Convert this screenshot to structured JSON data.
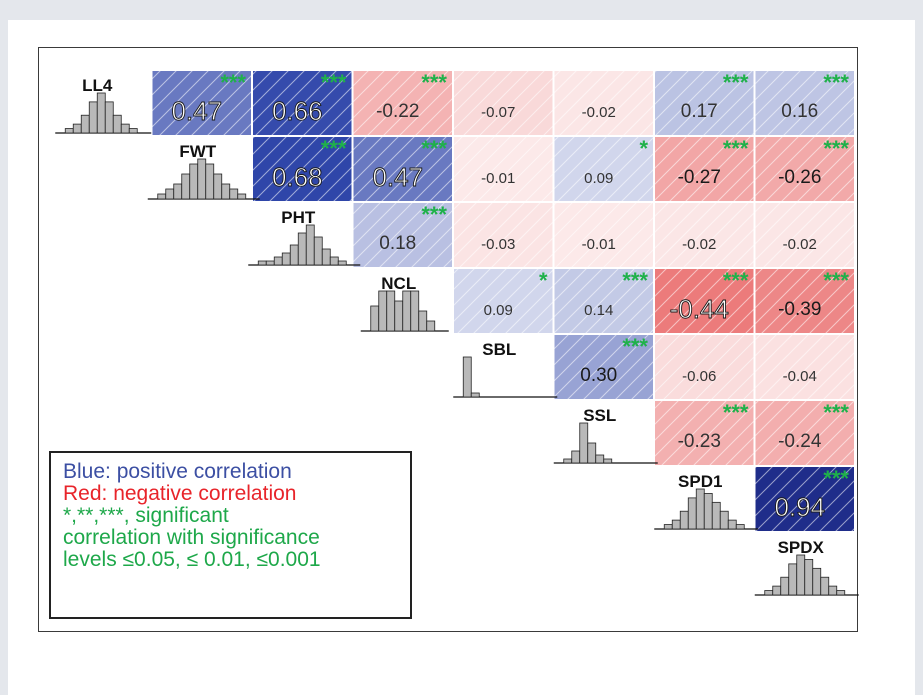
{
  "chart_data": {
    "type": "heatmap",
    "variables": [
      "LL4",
      "FWT",
      "PHT",
      "NCL",
      "SBL",
      "SSL",
      "SPD1",
      "SPDX"
    ],
    "cells": [
      {
        "row": "LL4",
        "col": "FWT",
        "value": "0.47",
        "stars": "***"
      },
      {
        "row": "LL4",
        "col": "PHT",
        "value": "0.66",
        "stars": "***"
      },
      {
        "row": "LL4",
        "col": "NCL",
        "value": "-0.22",
        "stars": "***"
      },
      {
        "row": "LL4",
        "col": "SBL",
        "value": "-0.07",
        "stars": ""
      },
      {
        "row": "LL4",
        "col": "SSL",
        "value": "-0.02",
        "stars": ""
      },
      {
        "row": "LL4",
        "col": "SPD1",
        "value": "0.17",
        "stars": "***"
      },
      {
        "row": "LL4",
        "col": "SPDX",
        "value": "0.16",
        "stars": "***"
      },
      {
        "row": "FWT",
        "col": "PHT",
        "value": "0.68",
        "stars": "***"
      },
      {
        "row": "FWT",
        "col": "NCL",
        "value": "0.47",
        "stars": "***"
      },
      {
        "row": "FWT",
        "col": "SBL",
        "value": "-0.01",
        "stars": ""
      },
      {
        "row": "FWT",
        "col": "SSL",
        "value": "0.09",
        "stars": "*"
      },
      {
        "row": "FWT",
        "col": "SPD1",
        "value": "-0.27",
        "stars": "***"
      },
      {
        "row": "FWT",
        "col": "SPDX",
        "value": "-0.26",
        "stars": "***"
      },
      {
        "row": "PHT",
        "col": "NCL",
        "value": "0.18",
        "stars": "***"
      },
      {
        "row": "PHT",
        "col": "SBL",
        "value": "-0.03",
        "stars": ""
      },
      {
        "row": "PHT",
        "col": "SSL",
        "value": "-0.01",
        "stars": ""
      },
      {
        "row": "PHT",
        "col": "SPD1",
        "value": "-0.02",
        "stars": ""
      },
      {
        "row": "PHT",
        "col": "SPDX",
        "value": "-0.02",
        "stars": ""
      },
      {
        "row": "NCL",
        "col": "SBL",
        "value": "0.09",
        "stars": "*"
      },
      {
        "row": "NCL",
        "col": "SSL",
        "value": "0.14",
        "stars": "***"
      },
      {
        "row": "NCL",
        "col": "SPD1",
        "value": "-0.44",
        "stars": "***"
      },
      {
        "row": "NCL",
        "col": "SPDX",
        "value": "-0.39",
        "stars": "***"
      },
      {
        "row": "SBL",
        "col": "SSL",
        "value": "0.30",
        "stars": "***"
      },
      {
        "row": "SBL",
        "col": "SPD1",
        "value": "-0.06",
        "stars": ""
      },
      {
        "row": "SBL",
        "col": "SPDX",
        "value": "-0.04",
        "stars": ""
      },
      {
        "row": "SSL",
        "col": "SPD1",
        "value": "-0.23",
        "stars": "***"
      },
      {
        "row": "SSL",
        "col": "SPDX",
        "value": "-0.24",
        "stars": "***"
      },
      {
        "row": "SPD1",
        "col": "SPDX",
        "value": "0.94",
        "stars": "***"
      }
    ],
    "histograms": {
      "LL4": [
        1,
        2,
        4,
        7,
        9,
        7,
        4,
        2,
        1
      ],
      "FWT": [
        1,
        2,
        3,
        5,
        7,
        8,
        7,
        5,
        3,
        2,
        1
      ],
      "PHT": [
        1,
        1,
        2,
        3,
        5,
        8,
        10,
        7,
        4,
        2,
        1
      ],
      "NCL": [
        5,
        8,
        8,
        6,
        8,
        8,
        4,
        2
      ],
      "SBL": [
        10,
        1,
        0,
        0,
        0,
        0,
        0,
        0,
        0,
        0
      ],
      "SSL": [
        1,
        3,
        10,
        5,
        2,
        1,
        0,
        0,
        0,
        0
      ],
      "SPD1": [
        1,
        2,
        4,
        7,
        9,
        8,
        6,
        4,
        2,
        1
      ],
      "SPDX": [
        1,
        2,
        4,
        7,
        9,
        8,
        6,
        4,
        2,
        1
      ]
    },
    "colors": {
      "positive": "#2c43a8",
      "negative": "#e23a3a",
      "stars": "#1fb14a"
    }
  },
  "legend": {
    "line1": "Blue: positive correlation",
    "line2": "Red: negative correlation",
    "line3": "*,**,***, significant",
    "line4": "correlation with significance",
    "line5": "levels ≤0.05, ≤ 0.01, ≤0.001"
  }
}
